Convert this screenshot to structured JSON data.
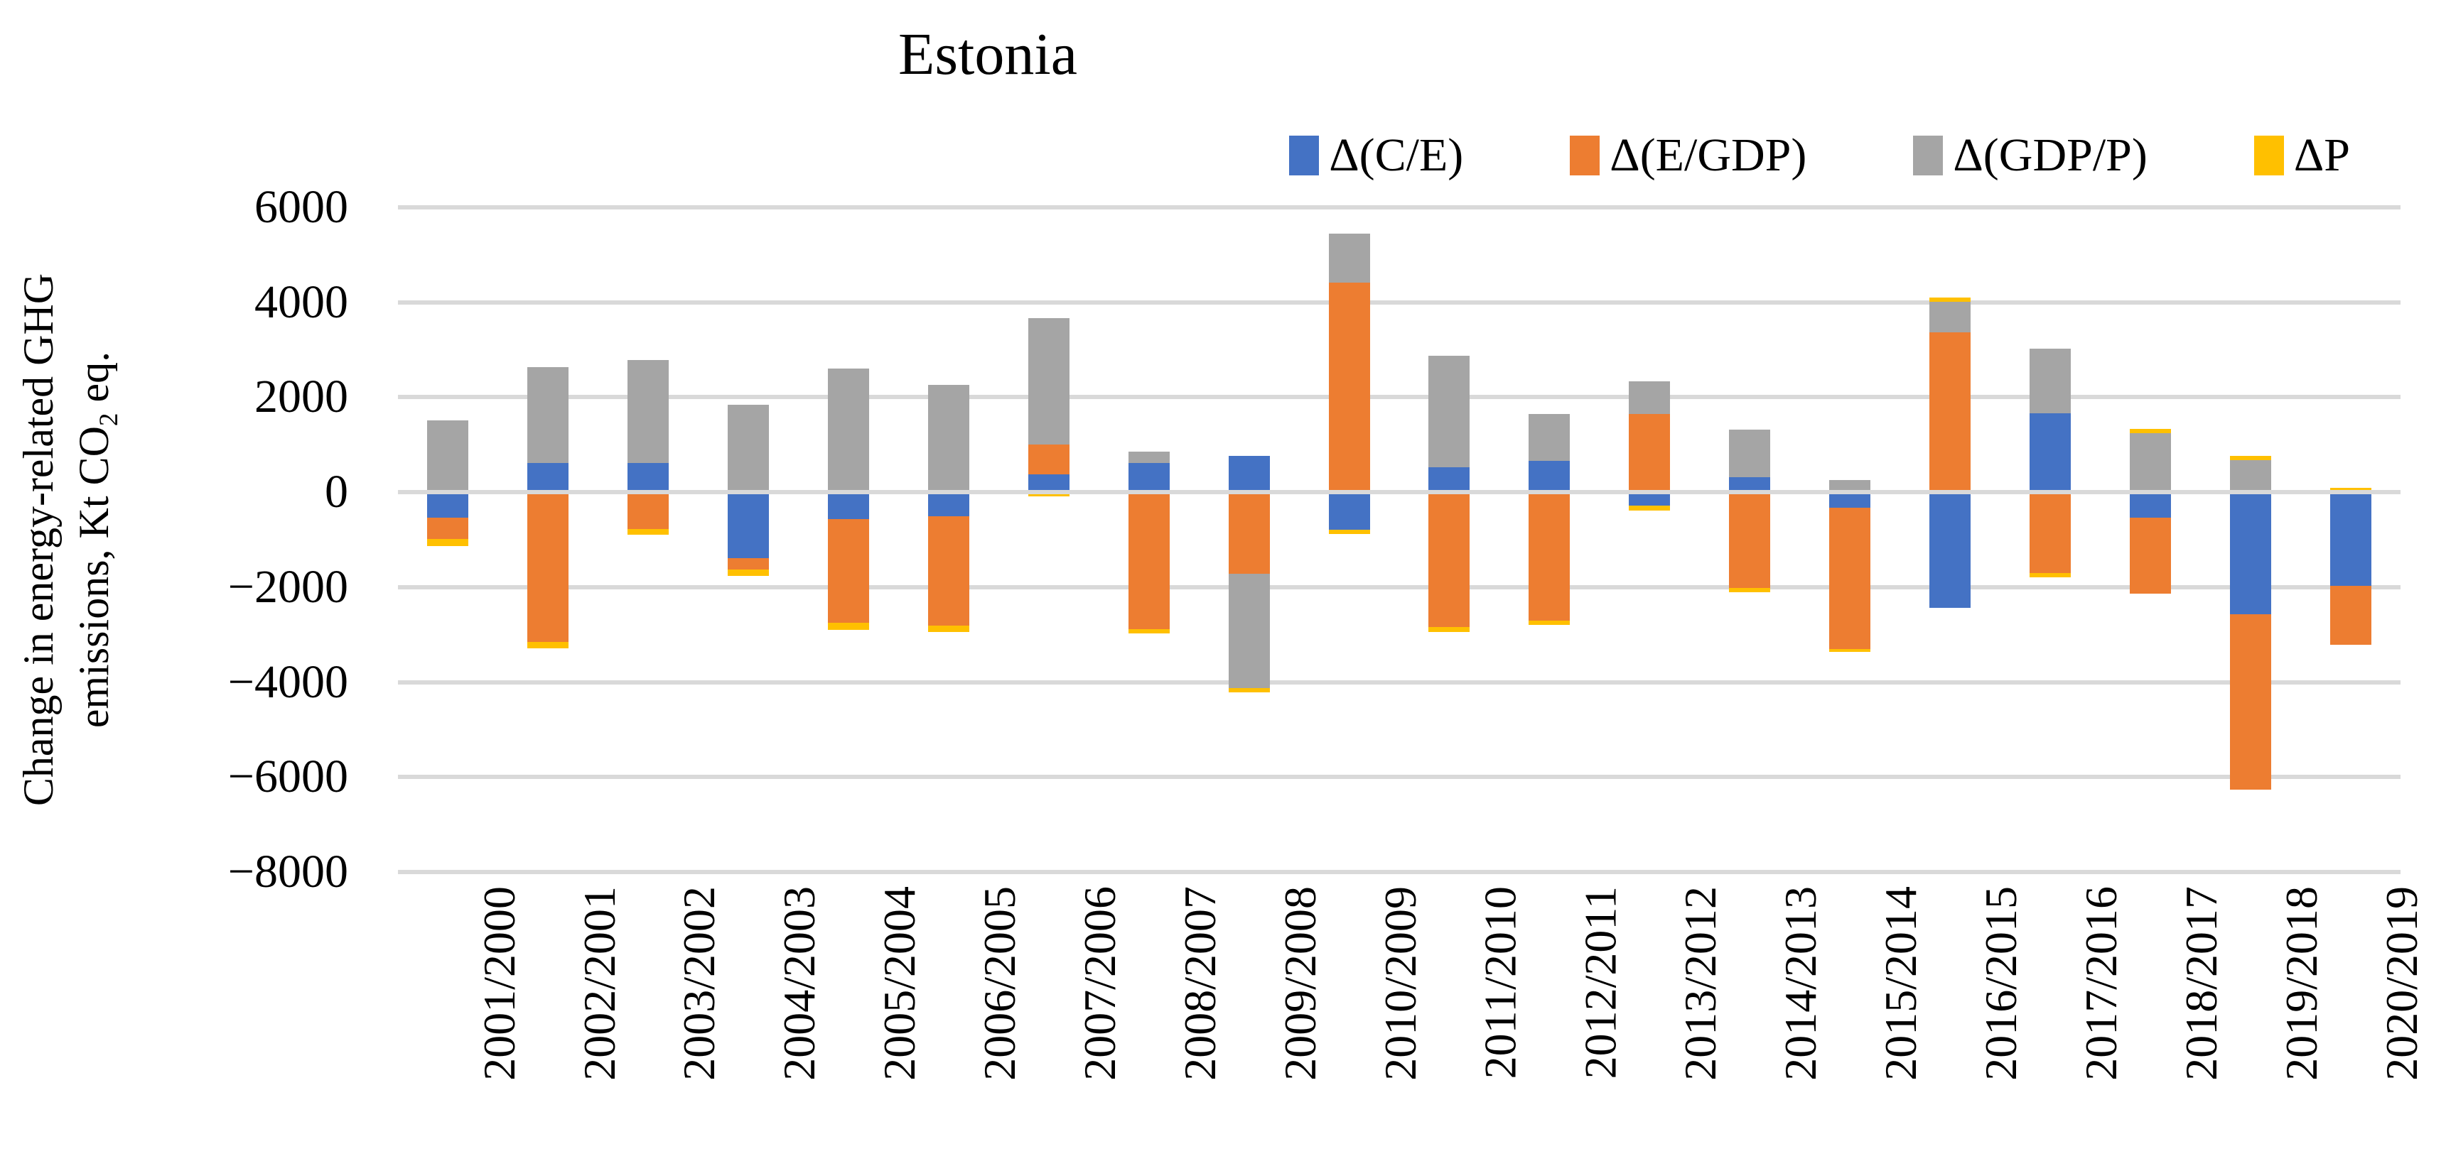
{
  "title": "Estonia",
  "ylabel": {
    "line1": "Change in energy-related GHG",
    "line2_pre": "emissions, Kt CO",
    "line2_sub": "2",
    "line2_post": " eq."
  },
  "chart_data": {
    "type": "bar",
    "stacked": true,
    "title": "Estonia",
    "xlabel": "",
    "ylabel": "Change in energy-related GHG emissions, Kt CO2 eq.",
    "ylim": [
      -8000,
      6000
    ],
    "ytick_step": 2000,
    "yticks": [
      6000,
      4000,
      2000,
      0,
      -2000,
      -4000,
      -6000,
      -8000
    ],
    "ytick_labels": [
      "6000",
      "4000",
      "2000",
      "0",
      "−2000",
      "−4000",
      "−6000",
      "−8000"
    ],
    "grid": true,
    "legend_position": "top-right",
    "categories": [
      "2001/2000",
      "2002/2001",
      "2003/2002",
      "2004/2003",
      "2005/2004",
      "2006/2005",
      "2007/2006",
      "2008/2007",
      "2009/2008",
      "2010/2009",
      "2011/2010",
      "2012/2011",
      "2013/2012",
      "2014/2013",
      "2015/2014",
      "2016/2015",
      "2017/2016",
      "2018/2017",
      "2019/2018",
      "2020/2019"
    ],
    "series": [
      {
        "name": "Δ(C/E)",
        "color": "#4472C4",
        "values": [
          -530,
          620,
          610,
          -1390,
          -560,
          -500,
          370,
          620,
          760,
          -790,
          520,
          660,
          -280,
          310,
          -330,
          -2430,
          1660,
          -540,
          -2570,
          -1970
        ]
      },
      {
        "name": "Δ(E/GDP)",
        "color": "#ED7D31",
        "values": [
          -460,
          -3150,
          -770,
          -240,
          -2190,
          -2310,
          630,
          -2880,
          -1720,
          4420,
          -2840,
          -2700,
          1650,
          -2010,
          -2970,
          3370,
          -1710,
          -1600,
          -3700,
          -1240
        ]
      },
      {
        "name": "Δ(GDP/P)",
        "color": "#A5A5A5",
        "values": [
          1510,
          2010,
          2170,
          1840,
          2600,
          2260,
          2660,
          240,
          -2410,
          1020,
          2350,
          990,
          690,
          1010,
          250,
          640,
          1360,
          1250,
          680,
          20
        ]
      },
      {
        "name": "ΔP",
        "color": "#FFC000",
        "values": [
          -140,
          -140,
          -130,
          -140,
          -150,
          -130,
          -90,
          -90,
          -80,
          -90,
          -110,
          -90,
          -110,
          -90,
          -70,
          90,
          -90,
          90,
          90,
          70
        ]
      }
    ],
    "colors": {
      "gridline": "#D9D9D9",
      "text": "#000000"
    }
  }
}
